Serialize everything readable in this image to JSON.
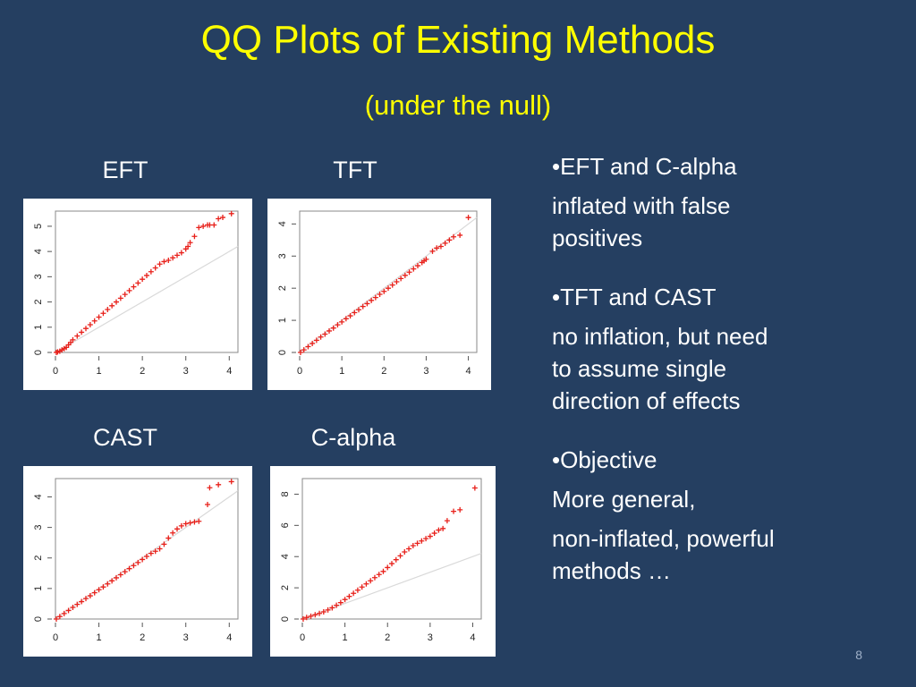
{
  "slide": {
    "title": "QQ Plots of Existing Methods",
    "subtitle": "(under the null)",
    "page_number": "8"
  },
  "bullets": [
    {
      "head": "•EFT and C-alpha",
      "lines": [
        "inflated with false",
        "positives"
      ]
    },
    {
      "head": "•TFT and CAST",
      "lines": [
        "no inflation, but need",
        "to assume single",
        "direction of effects"
      ]
    },
    {
      "head": "•Objective",
      "lines": [
        "More general,",
        "non-inflated,  powerful",
        "methods …"
      ]
    }
  ],
  "colors": {
    "background": "#253f61",
    "title": "#ffff00",
    "text": "#ffffff",
    "points": "#e8201a",
    "reference_line": "#d9d9d9"
  },
  "chart_data": [
    {
      "type": "scatter",
      "label": "EFT",
      "xlim": [
        0,
        4.2
      ],
      "ylim": [
        0,
        5.6
      ],
      "xticks": [
        0,
        1,
        2,
        3,
        4
      ],
      "yticks": [
        0,
        1,
        2,
        3,
        4,
        5
      ],
      "xtick_labels": [
        "0",
        "1",
        "2",
        "3",
        "4"
      ],
      "ytick_labels": [
        "0",
        "1",
        "2",
        "3",
        "4",
        "5"
      ],
      "reference_line": [
        [
          0,
          0
        ],
        [
          4.2,
          4.2
        ]
      ],
      "points": [
        [
          0.02,
          0.0
        ],
        [
          0.05,
          0.02
        ],
        [
          0.1,
          0.05
        ],
        [
          0.15,
          0.1
        ],
        [
          0.2,
          0.15
        ],
        [
          0.25,
          0.2
        ],
        [
          0.3,
          0.3
        ],
        [
          0.35,
          0.4
        ],
        [
          0.4,
          0.5
        ],
        [
          0.5,
          0.65
        ],
        [
          0.6,
          0.8
        ],
        [
          0.7,
          0.95
        ],
        [
          0.8,
          1.1
        ],
        [
          0.9,
          1.25
        ],
        [
          1.0,
          1.4
        ],
        [
          1.1,
          1.55
        ],
        [
          1.2,
          1.7
        ],
        [
          1.3,
          1.85
        ],
        [
          1.4,
          2.0
        ],
        [
          1.5,
          2.15
        ],
        [
          1.6,
          2.3
        ],
        [
          1.7,
          2.45
        ],
        [
          1.8,
          2.6
        ],
        [
          1.9,
          2.75
        ],
        [
          2.0,
          2.9
        ],
        [
          2.1,
          3.05
        ],
        [
          2.2,
          3.2
        ],
        [
          2.3,
          3.35
        ],
        [
          2.4,
          3.5
        ],
        [
          2.5,
          3.6
        ],
        [
          2.6,
          3.65
        ],
        [
          2.7,
          3.75
        ],
        [
          2.8,
          3.85
        ],
        [
          2.9,
          3.95
        ],
        [
          3.0,
          4.1
        ],
        [
          3.05,
          4.2
        ],
        [
          3.1,
          4.35
        ],
        [
          3.2,
          4.6
        ],
        [
          3.3,
          4.95
        ],
        [
          3.4,
          5.0
        ],
        [
          3.5,
          5.05
        ],
        [
          3.55,
          5.05
        ],
        [
          3.65,
          5.05
        ],
        [
          3.75,
          5.3
        ],
        [
          3.85,
          5.35
        ],
        [
          4.05,
          5.5
        ]
      ]
    },
    {
      "type": "scatter",
      "label": "TFT",
      "xlim": [
        0,
        4.2
      ],
      "ylim": [
        0,
        4.4
      ],
      "xticks": [
        0,
        1,
        2,
        3,
        4
      ],
      "yticks": [
        0,
        1,
        2,
        3,
        4
      ],
      "xtick_labels": [
        "0",
        "1",
        "2",
        "3",
        "4"
      ],
      "ytick_labels": [
        "0",
        "1",
        "2",
        "3",
        "4"
      ],
      "reference_line": [
        [
          0,
          0
        ],
        [
          4.2,
          4.2
        ]
      ],
      "points": [
        [
          0.02,
          0.0
        ],
        [
          0.1,
          0.08
        ],
        [
          0.2,
          0.18
        ],
        [
          0.3,
          0.28
        ],
        [
          0.4,
          0.38
        ],
        [
          0.5,
          0.48
        ],
        [
          0.6,
          0.57
        ],
        [
          0.7,
          0.67
        ],
        [
          0.8,
          0.76
        ],
        [
          0.9,
          0.86
        ],
        [
          1.0,
          0.95
        ],
        [
          1.1,
          1.05
        ],
        [
          1.2,
          1.14
        ],
        [
          1.3,
          1.24
        ],
        [
          1.4,
          1.33
        ],
        [
          1.5,
          1.43
        ],
        [
          1.6,
          1.52
        ],
        [
          1.7,
          1.62
        ],
        [
          1.8,
          1.71
        ],
        [
          1.9,
          1.81
        ],
        [
          2.0,
          1.9
        ],
        [
          2.1,
          2.0
        ],
        [
          2.2,
          2.1
        ],
        [
          2.3,
          2.2
        ],
        [
          2.4,
          2.3
        ],
        [
          2.5,
          2.4
        ],
        [
          2.6,
          2.5
        ],
        [
          2.7,
          2.6
        ],
        [
          2.8,
          2.7
        ],
        [
          2.9,
          2.8
        ],
        [
          2.95,
          2.85
        ],
        [
          3.0,
          2.9
        ],
        [
          3.15,
          3.15
        ],
        [
          3.25,
          3.25
        ],
        [
          3.35,
          3.3
        ],
        [
          3.45,
          3.4
        ],
        [
          3.55,
          3.5
        ],
        [
          3.65,
          3.6
        ],
        [
          3.8,
          3.65
        ],
        [
          4.0,
          4.2
        ]
      ]
    },
    {
      "type": "scatter",
      "label": "CAST",
      "xlim": [
        0,
        4.2
      ],
      "ylim": [
        0,
        4.6
      ],
      "xticks": [
        0,
        1,
        2,
        3,
        4
      ],
      "yticks": [
        0,
        1,
        2,
        3,
        4
      ],
      "xtick_labels": [
        "0",
        "1",
        "2",
        "3",
        "4"
      ],
      "ytick_labels": [
        "0",
        "1",
        "2",
        "3",
        "4"
      ],
      "reference_line": [
        [
          0,
          0
        ],
        [
          4.2,
          4.2
        ]
      ],
      "points": [
        [
          0.02,
          0.0
        ],
        [
          0.1,
          0.08
        ],
        [
          0.2,
          0.18
        ],
        [
          0.3,
          0.28
        ],
        [
          0.4,
          0.38
        ],
        [
          0.5,
          0.48
        ],
        [
          0.6,
          0.57
        ],
        [
          0.7,
          0.67
        ],
        [
          0.8,
          0.76
        ],
        [
          0.9,
          0.86
        ],
        [
          1.0,
          0.96
        ],
        [
          1.1,
          1.05
        ],
        [
          1.2,
          1.15
        ],
        [
          1.3,
          1.25
        ],
        [
          1.4,
          1.35
        ],
        [
          1.5,
          1.45
        ],
        [
          1.6,
          1.55
        ],
        [
          1.7,
          1.65
        ],
        [
          1.8,
          1.75
        ],
        [
          1.9,
          1.85
        ],
        [
          2.0,
          1.95
        ],
        [
          2.1,
          2.05
        ],
        [
          2.2,
          2.15
        ],
        [
          2.3,
          2.22
        ],
        [
          2.4,
          2.3
        ],
        [
          2.5,
          2.45
        ],
        [
          2.6,
          2.65
        ],
        [
          2.7,
          2.82
        ],
        [
          2.8,
          2.95
        ],
        [
          2.9,
          3.05
        ],
        [
          3.0,
          3.12
        ],
        [
          3.1,
          3.15
        ],
        [
          3.2,
          3.18
        ],
        [
          3.3,
          3.2
        ],
        [
          3.5,
          3.75
        ],
        [
          3.55,
          4.3
        ],
        [
          3.75,
          4.4
        ],
        [
          4.05,
          4.5
        ]
      ]
    },
    {
      "type": "scatter",
      "label": "C-alpha",
      "xlim": [
        0,
        4.2
      ],
      "ylim": [
        0,
        9.0
      ],
      "xticks": [
        0,
        1,
        2,
        3,
        4
      ],
      "yticks": [
        0,
        2,
        4,
        6,
        8
      ],
      "xtick_labels": [
        "0",
        "1",
        "2",
        "3",
        "4"
      ],
      "ytick_labels": [
        "0",
        "2",
        "4",
        "6",
        "8"
      ],
      "reference_line": [
        [
          0,
          0
        ],
        [
          4.2,
          4.2
        ]
      ],
      "points": [
        [
          0.02,
          0.0
        ],
        [
          0.1,
          0.1
        ],
        [
          0.2,
          0.18
        ],
        [
          0.3,
          0.27
        ],
        [
          0.4,
          0.36
        ],
        [
          0.5,
          0.46
        ],
        [
          0.6,
          0.58
        ],
        [
          0.7,
          0.72
        ],
        [
          0.8,
          0.88
        ],
        [
          0.9,
          1.05
        ],
        [
          1.0,
          1.25
        ],
        [
          1.1,
          1.45
        ],
        [
          1.2,
          1.65
        ],
        [
          1.3,
          1.85
        ],
        [
          1.4,
          2.05
        ],
        [
          1.5,
          2.25
        ],
        [
          1.6,
          2.45
        ],
        [
          1.7,
          2.65
        ],
        [
          1.8,
          2.85
        ],
        [
          1.9,
          3.05
        ],
        [
          2.0,
          3.3
        ],
        [
          2.1,
          3.55
        ],
        [
          2.2,
          3.8
        ],
        [
          2.3,
          4.05
        ],
        [
          2.4,
          4.3
        ],
        [
          2.5,
          4.5
        ],
        [
          2.6,
          4.7
        ],
        [
          2.7,
          4.85
        ],
        [
          2.8,
          5.0
        ],
        [
          2.9,
          5.15
        ],
        [
          3.0,
          5.3
        ],
        [
          3.1,
          5.5
        ],
        [
          3.2,
          5.7
        ],
        [
          3.3,
          5.8
        ],
        [
          3.4,
          6.3
        ],
        [
          3.55,
          6.9
        ],
        [
          3.7,
          7.0
        ],
        [
          4.05,
          8.4
        ]
      ]
    }
  ]
}
